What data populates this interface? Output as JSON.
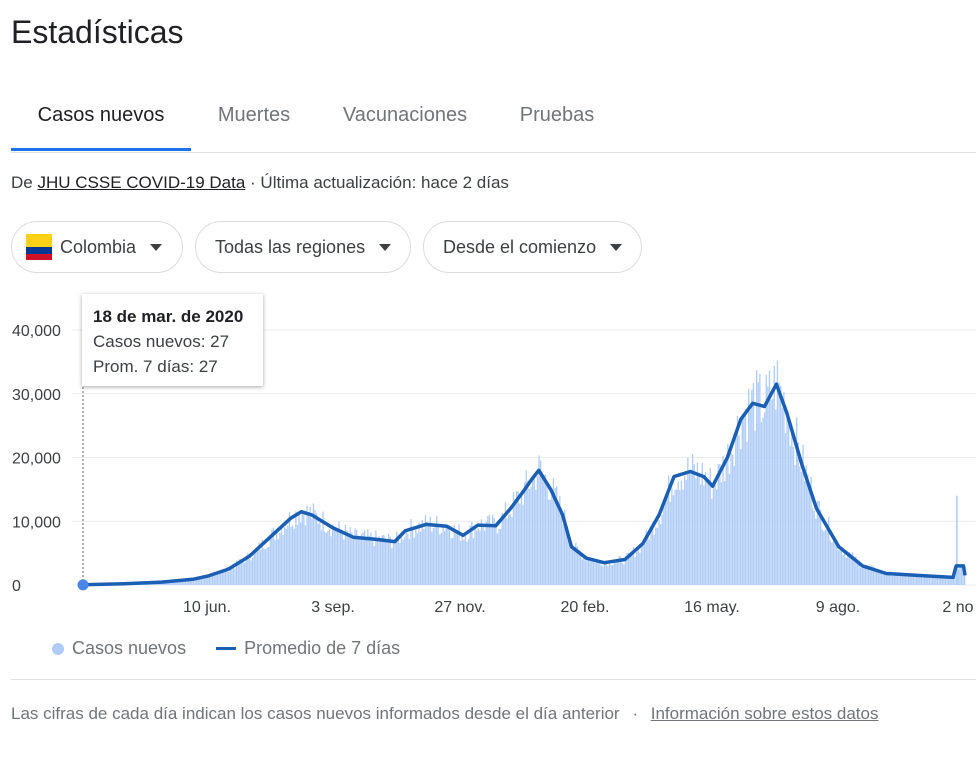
{
  "page": {
    "title": "Estadísticas"
  },
  "tabs": [
    {
      "label": "Casos nuevos",
      "active": true
    },
    {
      "label": "Muertes",
      "active": false
    },
    {
      "label": "Vacunaciones",
      "active": false
    },
    {
      "label": "Pruebas",
      "active": false
    }
  ],
  "source": {
    "prefix": "De ",
    "link": "JHU CSSE COVID-19 Data",
    "updated": " · Última actualización: hace 2 días"
  },
  "filters": {
    "country": "Colombia",
    "region": "Todas las regiones",
    "range": "Desde el comienzo"
  },
  "tooltip": {
    "date": "18 de mar. de 2020",
    "cases": "Casos nuevos: 27",
    "avg": "Prom. 7 días: 27"
  },
  "legend": {
    "cases": "Casos nuevos",
    "avg": "Promedio de 7 días"
  },
  "footer": {
    "note": "Las cifras de cada día indican los casos nuevos informados desde el día anterior",
    "sep": "·",
    "link": "Información sobre estos datos"
  },
  "colors": {
    "accent": "#1a73e8",
    "line": "#1a5fb4",
    "bars": "#aecbfa"
  },
  "icons": {
    "dropdown": "caret-down-icon",
    "flag": "colombia-flag-icon"
  },
  "chart_data": {
    "type": "area",
    "y_ticks": [
      "40,000",
      "30,000",
      "20,000",
      "10,000",
      "0"
    ],
    "x_ticks": [
      "10 jun.",
      "3 sep.",
      "27 nov.",
      "20 feb.",
      "16 may.",
      "9 ago.",
      "2 no"
    ],
    "ylim": [
      0,
      40000
    ],
    "average_series": {
      "name": "Promedio de 7 días",
      "points": [
        [
          "2020-03-18",
          27
        ],
        [
          "2020-04-15",
          200
        ],
        [
          "2020-05-10",
          450
        ],
        [
          "2020-05-31",
          900
        ],
        [
          "2020-06-10",
          1400
        ],
        [
          "2020-06-24",
          2500
        ],
        [
          "2020-07-08",
          4500
        ],
        [
          "2020-07-22",
          7500
        ],
        [
          "2020-08-05",
          10500
        ],
        [
          "2020-08-12",
          11500
        ],
        [
          "2020-08-19",
          11000
        ],
        [
          "2020-09-02",
          9000
        ],
        [
          "2020-09-16",
          7500
        ],
        [
          "2020-09-30",
          7200
        ],
        [
          "2020-10-14",
          6800
        ],
        [
          "2020-10-21",
          8500
        ],
        [
          "2020-11-04",
          9500
        ],
        [
          "2020-11-18",
          9200
        ],
        [
          "2020-11-29",
          7800
        ],
        [
          "2020-12-09",
          9400
        ],
        [
          "2020-12-21",
          9300
        ],
        [
          "2020-12-31",
          12000
        ],
        [
          "2021-01-08",
          14500
        ],
        [
          "2021-01-14",
          16500
        ],
        [
          "2021-01-19",
          18000
        ],
        [
          "2021-01-27",
          15000
        ],
        [
          "2021-02-04",
          11000
        ],
        [
          "2021-02-10",
          6000
        ],
        [
          "2021-02-20",
          4200
        ],
        [
          "2021-03-04",
          3500
        ],
        [
          "2021-03-18",
          4000
        ],
        [
          "2021-03-30",
          6500
        ],
        [
          "2021-04-10",
          11000
        ],
        [
          "2021-04-20",
          17000
        ],
        [
          "2021-05-01",
          17800
        ],
        [
          "2021-05-10",
          17000
        ],
        [
          "2021-05-16",
          15500
        ],
        [
          "2021-05-26",
          20000
        ],
        [
          "2021-06-04",
          26000
        ],
        [
          "2021-06-12",
          28500
        ],
        [
          "2021-06-20",
          28000
        ],
        [
          "2021-06-28",
          31500
        ],
        [
          "2021-07-05",
          27000
        ],
        [
          "2021-07-15",
          19000
        ],
        [
          "2021-07-25",
          12000
        ],
        [
          "2021-08-09",
          6000
        ],
        [
          "2021-08-25",
          3000
        ],
        [
          "2021-09-10",
          1800
        ],
        [
          "2021-10-01",
          1500
        ],
        [
          "2021-10-25",
          1200
        ],
        [
          "2021-10-27",
          3000
        ],
        [
          "2021-11-01",
          3000
        ],
        [
          "2021-11-02",
          1500
        ]
      ]
    },
    "cases_series": {
      "name": "Casos nuevos",
      "note": "daily bars around the 7-day average, with a spike near 14,000 late Oct 2021"
    }
  }
}
